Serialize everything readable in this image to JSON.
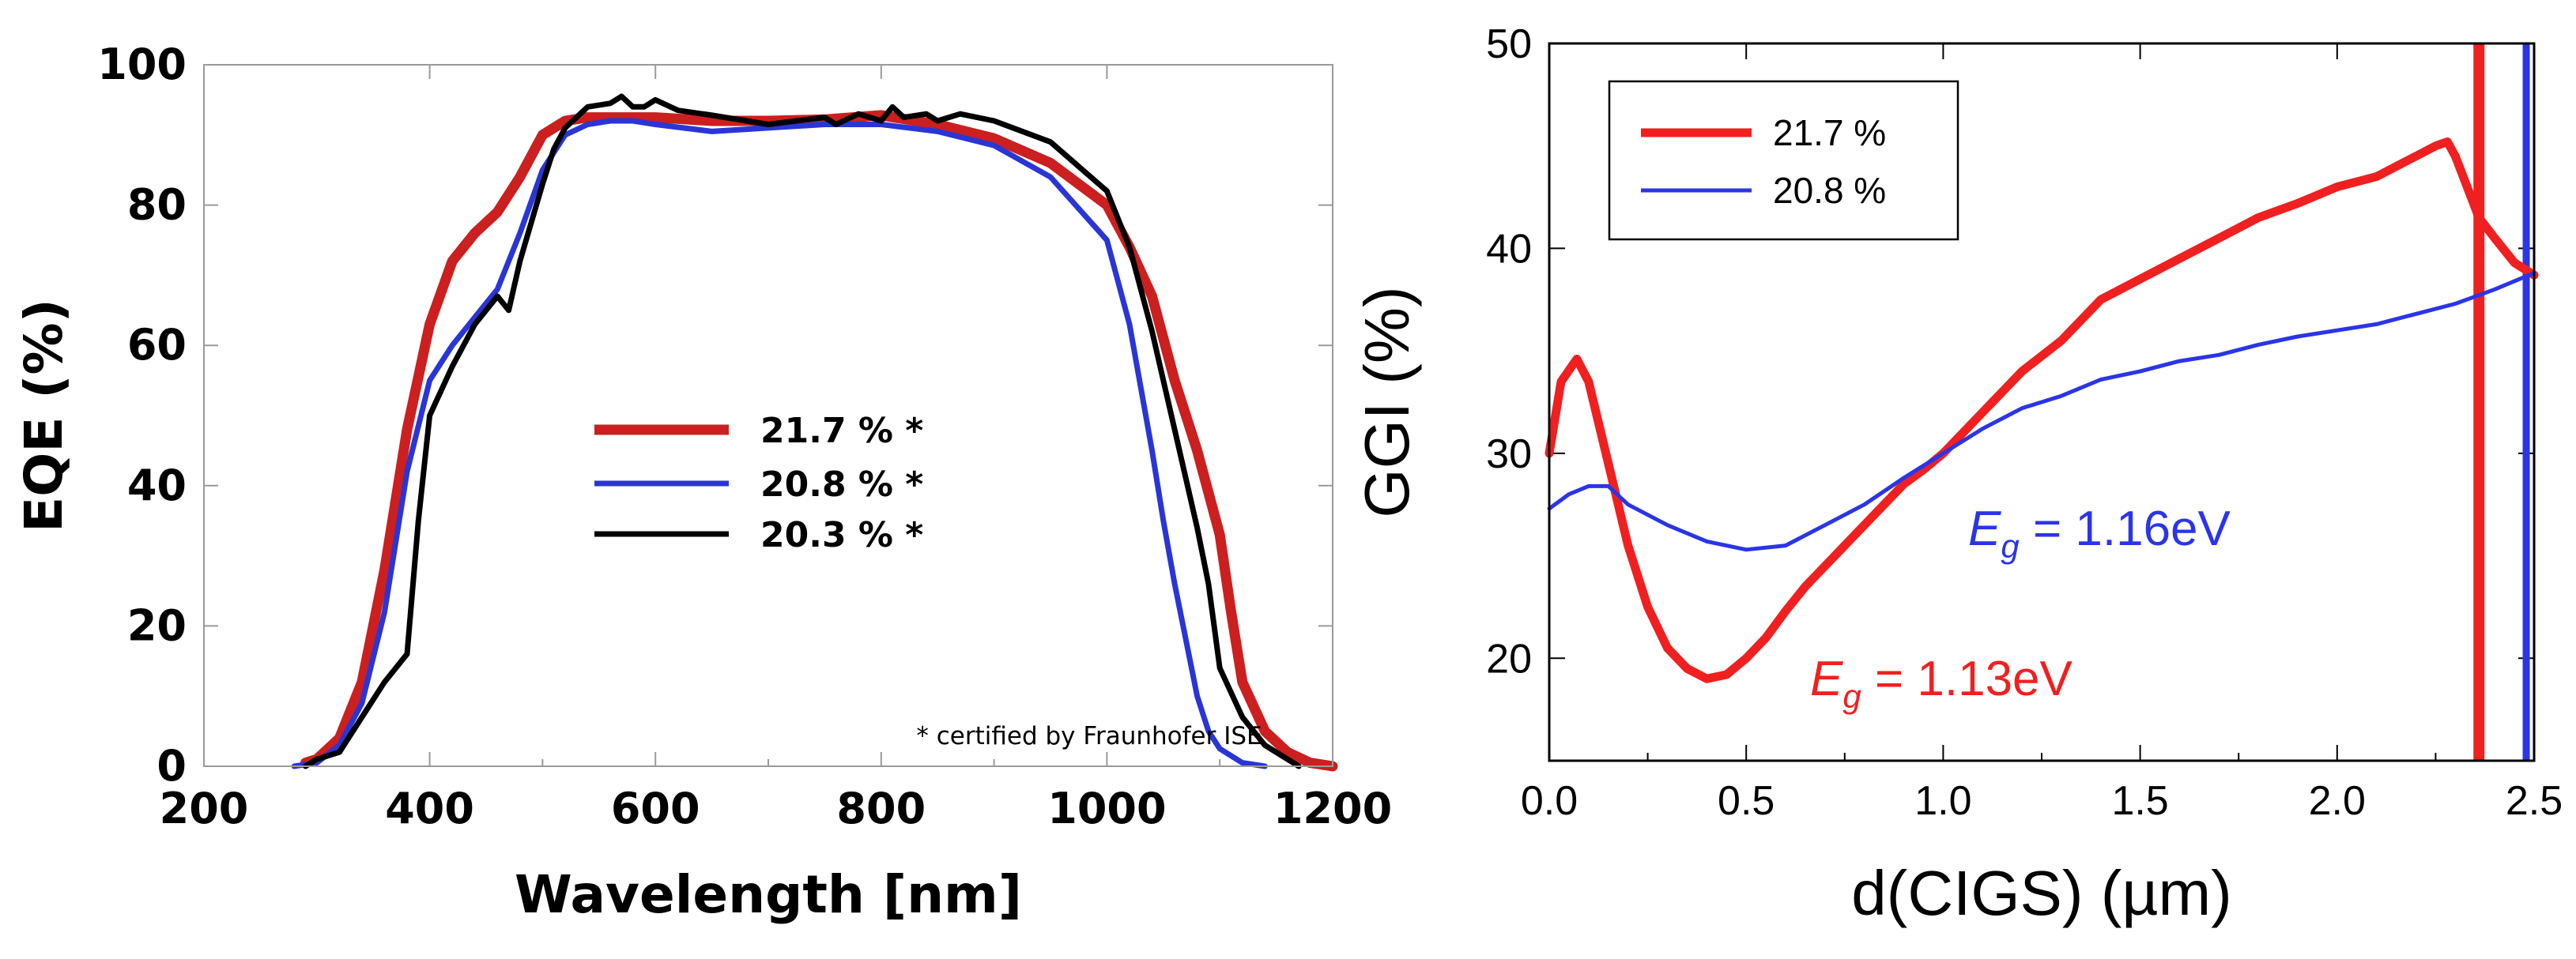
{
  "chart_data": [
    {
      "type": "line",
      "xlabel": "Wavelength [nm]",
      "ylabel": "EQE (%)",
      "xlim": [
        200,
        1200
      ],
      "ylim": [
        0,
        100
      ],
      "xticks": [
        "200",
        "400",
        "600",
        "800",
        "1000",
        "1200"
      ],
      "yticks": [
        "0",
        "20",
        "40",
        "60",
        "80",
        "100"
      ],
      "legend_position": "center",
      "annotation": "* certified by Fraunhofer ISE",
      "series": [
        {
          "name": "21.7 % *",
          "color": "#cc1f1f",
          "width": 13,
          "x": [
            290,
            300,
            320,
            340,
            360,
            380,
            400,
            420,
            440,
            460,
            480,
            500,
            520,
            540,
            560,
            580,
            600,
            650,
            700,
            750,
            800,
            850,
            900,
            950,
            1000,
            1020,
            1040,
            1060,
            1080,
            1100,
            1110,
            1120,
            1140,
            1160,
            1180,
            1200
          ],
          "y": [
            0.5,
            1,
            4,
            12,
            28,
            48,
            63,
            72,
            76,
            79,
            84,
            90,
            92,
            92.5,
            92.5,
            92.5,
            92.5,
            92,
            92,
            92.2,
            92.8,
            91.5,
            89.5,
            86,
            80,
            74,
            67,
            55,
            45,
            33,
            22,
            12,
            5,
            2,
            0.5,
            0
          ]
        },
        {
          "name": "20.8 % *",
          "color": "#2a35d6",
          "width": 7,
          "x": [
            280,
            300,
            320,
            340,
            360,
            380,
            400,
            420,
            440,
            460,
            480,
            500,
            520,
            540,
            560,
            580,
            600,
            650,
            700,
            750,
            800,
            850,
            900,
            950,
            1000,
            1020,
            1040,
            1050,
            1060,
            1070,
            1080,
            1090,
            1100,
            1120,
            1140
          ],
          "y": [
            0,
            0.5,
            3,
            9,
            22,
            42,
            55,
            60,
            64,
            68,
            76,
            85,
            90,
            91.5,
            92,
            92,
            91.5,
            90.5,
            91,
            91.5,
            91.5,
            90.5,
            88.5,
            84,
            75,
            63,
            45,
            35,
            26,
            18,
            10,
            5,
            2.5,
            0.5,
            0
          ]
        },
        {
          "name": "20.3 % *",
          "color": "#000000",
          "width": 7,
          "x": [
            290,
            300,
            320,
            340,
            360,
            380,
            390,
            400,
            420,
            440,
            460,
            470,
            480,
            500,
            510,
            520,
            540,
            560,
            570,
            580,
            590,
            600,
            620,
            650,
            700,
            750,
            760,
            780,
            800,
            810,
            820,
            840,
            850,
            870,
            900,
            950,
            1000,
            1020,
            1040,
            1060,
            1080,
            1090,
            1100,
            1120,
            1140,
            1160,
            1170
          ],
          "y": [
            0,
            1,
            2,
            7,
            12,
            16,
            35,
            50,
            57,
            63,
            67,
            65,
            72,
            83,
            88,
            91,
            94,
            94.5,
            95.5,
            94,
            94,
            95,
            93.5,
            92.8,
            91.5,
            92.5,
            91.5,
            93,
            92,
            94,
            92.5,
            93,
            92,
            93,
            92,
            89,
            82,
            74,
            62,
            48,
            34,
            26,
            14,
            7,
            3,
            1,
            0
          ]
        }
      ]
    },
    {
      "type": "line",
      "xlabel": "d(CIGS) (µm)",
      "ylabel": "GGI (%)",
      "xlim": [
        0.0,
        2.5
      ],
      "ylim": [
        15,
        50
      ],
      "xticks": [
        "0.0",
        "0.5",
        "1.0",
        "1.5",
        "2.0",
        "2.5"
      ],
      "yticks": [
        "20",
        "30",
        "40",
        "50"
      ],
      "legend_position": "top-left",
      "series": [
        {
          "name": "21.7 %",
          "color": "#f02020",
          "width": 11,
          "x": [
            0.0,
            0.03,
            0.07,
            0.1,
            0.15,
            0.2,
            0.25,
            0.3,
            0.35,
            0.4,
            0.45,
            0.5,
            0.55,
            0.6,
            0.65,
            0.7,
            0.75,
            0.8,
            0.85,
            0.9,
            0.95,
            1.0,
            1.1,
            1.2,
            1.3,
            1.4,
            1.5,
            1.6,
            1.7,
            1.8,
            1.9,
            2.0,
            2.1,
            2.2,
            2.25,
            2.28,
            2.3,
            2.33,
            2.36,
            2.4,
            2.45,
            2.5
          ],
          "y": [
            30,
            33.5,
            34.6,
            33.5,
            29.5,
            25.5,
            22.5,
            20.5,
            19.5,
            19,
            19.2,
            20,
            21,
            22.3,
            23.5,
            24.5,
            25.5,
            26.5,
            27.5,
            28.5,
            29.2,
            30,
            32,
            34,
            35.5,
            37.5,
            38.5,
            39.5,
            40.5,
            41.5,
            42.2,
            43,
            43.5,
            44.5,
            45,
            45.2,
            44.5,
            43,
            41.5,
            40.5,
            39.3,
            38.7
          ]
        },
        {
          "name": "20.8 %",
          "color": "#2a35e8",
          "width": 5,
          "x": [
            0.0,
            0.05,
            0.1,
            0.15,
            0.2,
            0.3,
            0.4,
            0.5,
            0.6,
            0.7,
            0.8,
            0.9,
            1.0,
            1.1,
            1.2,
            1.3,
            1.4,
            1.5,
            1.6,
            1.7,
            1.8,
            1.9,
            2.0,
            2.1,
            2.2,
            2.3,
            2.4,
            2.45,
            2.5
          ],
          "y": [
            27.3,
            28,
            28.4,
            28.4,
            27.5,
            26.5,
            25.7,
            25.3,
            25.5,
            26.5,
            27.5,
            28.8,
            30,
            31.2,
            32.2,
            32.8,
            33.6,
            34,
            34.5,
            34.8,
            35.3,
            35.7,
            36,
            36.3,
            36.8,
            37.3,
            38,
            38.4,
            38.8
          ]
        }
      ],
      "markers": [
        {
          "x": 2.36,
          "color": "#f02020",
          "width": 14
        },
        {
          "x": 2.48,
          "color": "#2a35e8",
          "width": 9
        }
      ],
      "annotations": [
        {
          "main": "E",
          "sub": "g",
          "rest": " = 1.16eV",
          "color": "#2a35e8"
        },
        {
          "main": "E",
          "sub": "g",
          "rest": " = 1.13eV",
          "color": "#f02020"
        }
      ]
    }
  ]
}
